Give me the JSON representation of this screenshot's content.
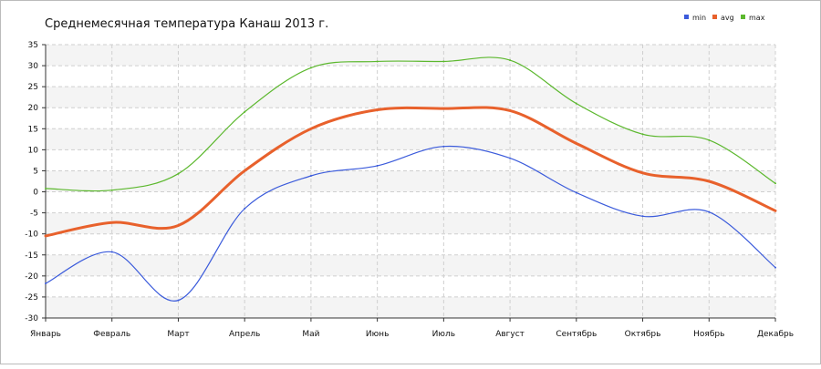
{
  "chart_data": {
    "type": "line",
    "title": "Среднемесячная температура Канаш  2013 г.",
    "xlabel": "",
    "ylabel": "",
    "categories": [
      "Январь",
      "Февраль",
      "Март",
      "Апрель",
      "Май",
      "Июнь",
      "Июль",
      "Август",
      "Сентябрь",
      "Октябрь",
      "Ноябрь",
      "Декабрь"
    ],
    "ylim": [
      -30,
      35
    ],
    "yticks": [
      "35",
      "30",
      "25",
      "20",
      "15",
      "10",
      "5",
      "0",
      "-5",
      "-10",
      "-15",
      "-20",
      "-25",
      "-30"
    ],
    "grid": true,
    "legend_position": "top-right",
    "series": [
      {
        "name": "min",
        "color": "#3b5bdb",
        "values": [
          -21.8,
          -14.3,
          -25.8,
          -4,
          3.8,
          6.2,
          10.8,
          8,
          -0.2,
          -5.8,
          -4.8,
          -18
        ]
      },
      {
        "name": "avg",
        "color": "#e8612c",
        "values": [
          -10.5,
          -7.3,
          -8,
          5,
          15,
          19.5,
          19.8,
          19.3,
          11.5,
          4.5,
          2.5,
          -4.5
        ]
      },
      {
        "name": "max",
        "color": "#5cb82e",
        "values": [
          0.8,
          0.4,
          4.3,
          19,
          29.5,
          31,
          31,
          31.3,
          21,
          13.7,
          12.3,
          2
        ]
      }
    ]
  }
}
